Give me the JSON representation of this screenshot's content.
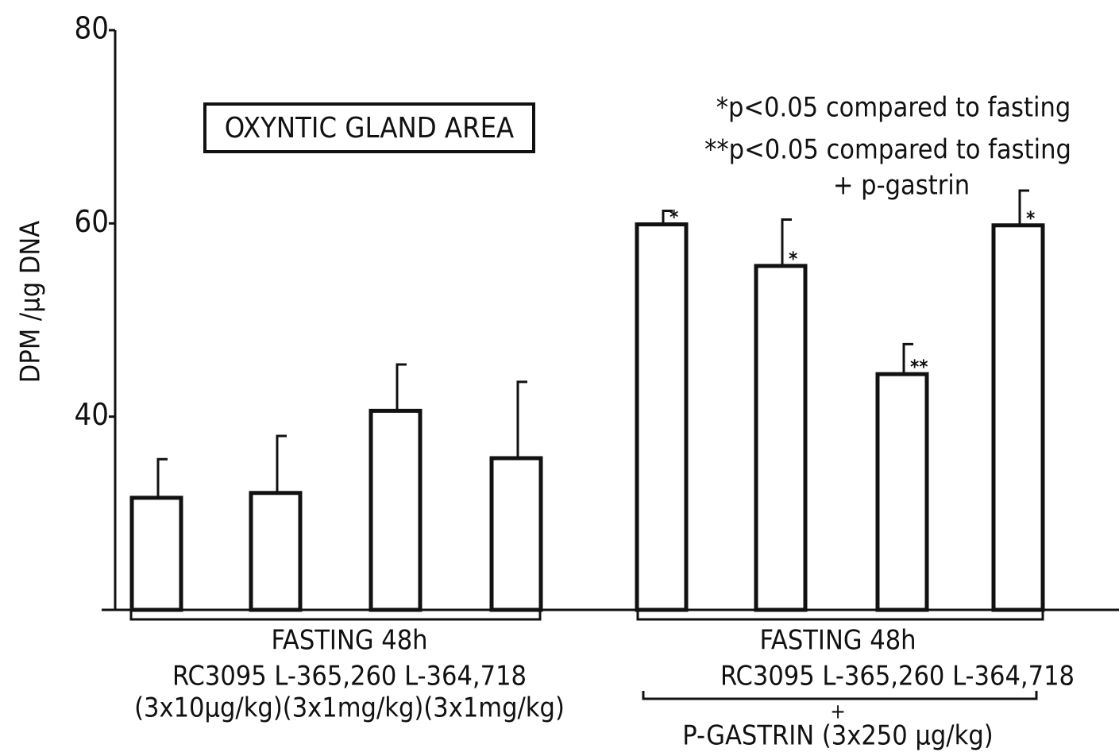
{
  "chart_data": {
    "type": "bar",
    "title": "OXYNTIC GLAND AREA",
    "y_label": "DPM /µg DNA",
    "categories": [
      null,
      null,
      null,
      null,
      null,
      null,
      null,
      null
    ],
    "values": [
      31.6,
      32.1,
      40.6,
      35.7,
      59.9,
      55.6,
      44.4,
      59.8
    ],
    "errors": [
      4.0,
      5.9,
      4.8,
      7.9,
      1.4,
      4.8,
      3.1,
      3.6
    ],
    "significance": [
      null,
      null,
      null,
      null,
      "*",
      "*",
      "**",
      "*"
    ],
    "color": "#ffffff",
    "ylim": [
      20,
      80
    ],
    "yticks": [
      40,
      60,
      80
    ],
    "notes": [
      "*p<0.05 compared to fasting",
      "**p<0.05 compared to fasting",
      "+ p-gastrin"
    ],
    "groups": [
      {
        "lines": [
          "FASTING 48h",
          "RC3095   L-365,260   L-364,718",
          "(3x10µg/kg)(3x1mg/kg)(3x1mg/kg)"
        ]
      },
      {
        "lines": [
          "FASTING 48h",
          "RC3095   L-365,260   L-364,718",
          "+",
          "P-GASTRIN (3x250 µg/kg)"
        ]
      }
    ]
  }
}
